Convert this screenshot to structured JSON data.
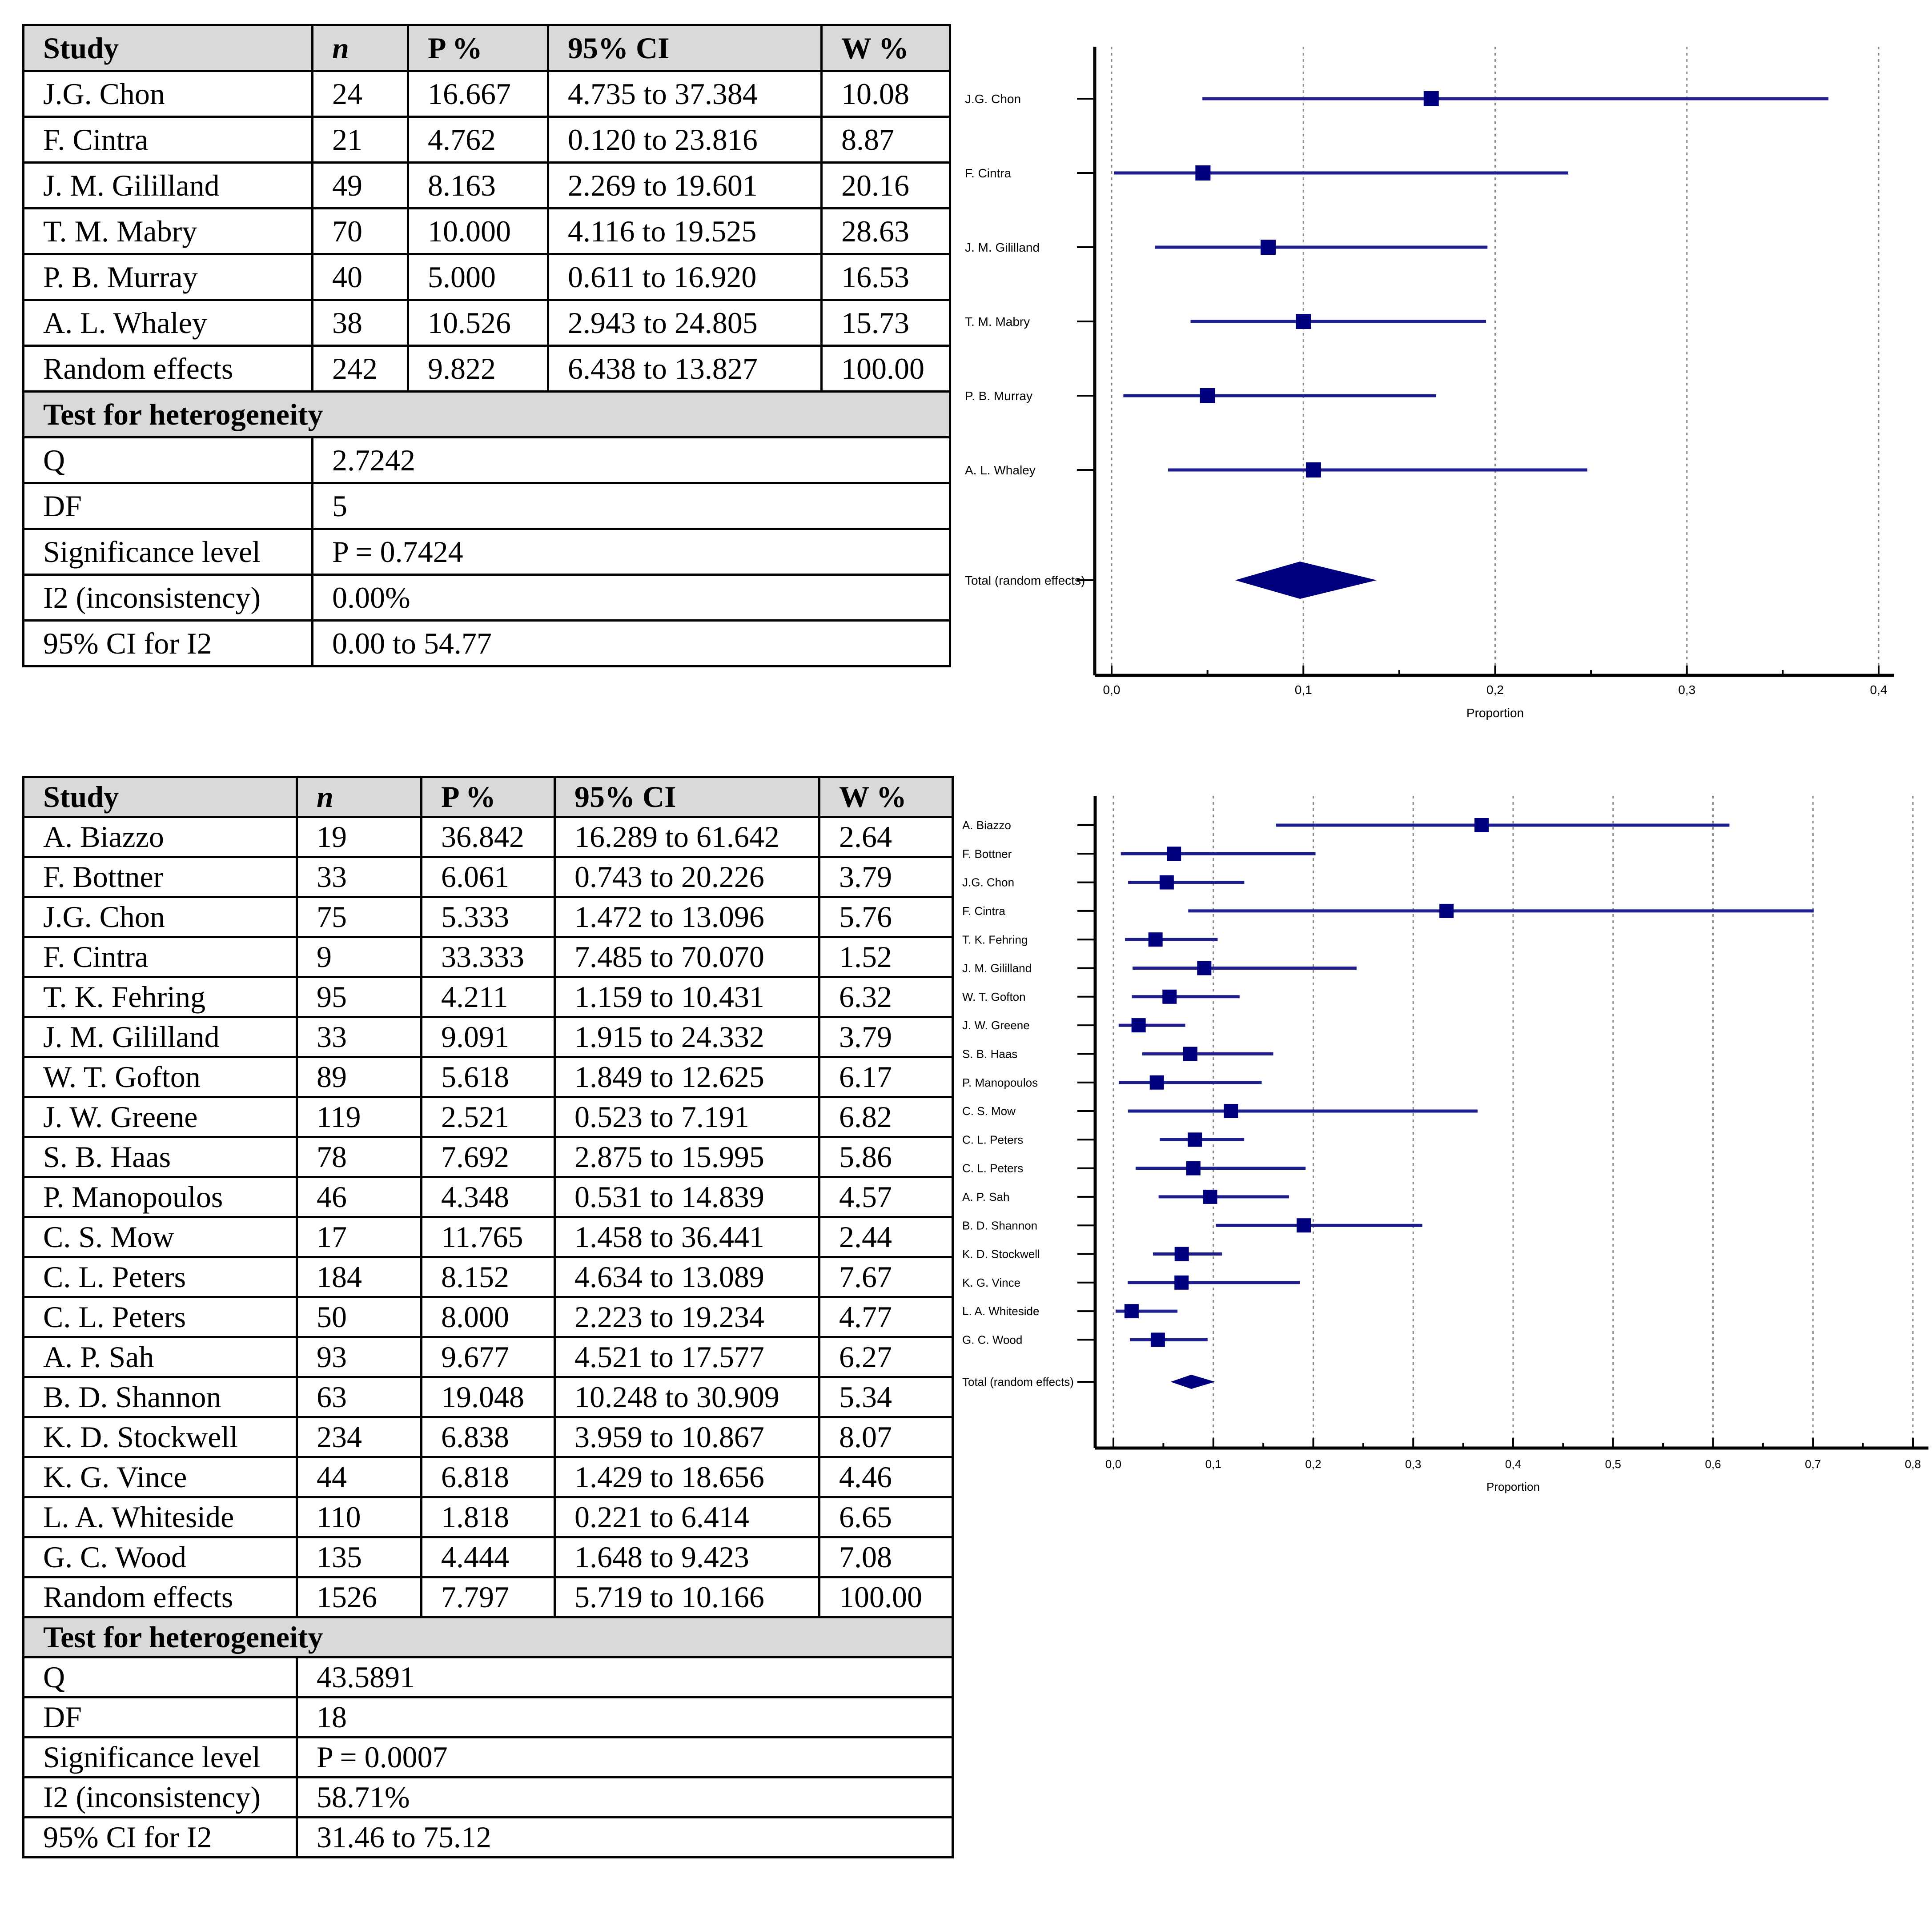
{
  "colors": {
    "marker": "#00007f",
    "ci_line": "#1f1f8f",
    "header_bg": "#d9d9d9",
    "grid": "#888888"
  },
  "table1": {
    "headers": [
      "Study",
      "n",
      "P %",
      "95% CI",
      "W %"
    ],
    "rows": [
      [
        "J.G. Chon",
        "24",
        "16.667",
        "4.735 to 37.384",
        "10.08"
      ],
      [
        "F. Cintra",
        "21",
        "4.762",
        "0.120 to 23.816",
        "8.87"
      ],
      [
        "J. M. Gililland",
        "49",
        "8.163",
        "2.269 to 19.601",
        "20.16"
      ],
      [
        "T. M. Mabry",
        "70",
        "10.000",
        "4.116 to 19.525",
        "28.63"
      ],
      [
        "P. B. Murray",
        "40",
        "5.000",
        "0.611 to 16.920",
        "16.53"
      ],
      [
        "A. L. Whaley",
        "38",
        "10.526",
        "2.943 to 24.805",
        "15.73"
      ],
      [
        "Random effects",
        "242",
        "9.822",
        "6.438 to 13.827",
        "100.00"
      ]
    ],
    "heterogeneity_title": "Test for heterogeneity",
    "heterogeneity": [
      [
        "Q",
        "2.7242"
      ],
      [
        "DF",
        "5"
      ],
      [
        "Significance level",
        "P = 0.7424"
      ],
      [
        "I2 (inconsistency)",
        "0.00%"
      ],
      [
        "95% CI for I2",
        "0.00 to 54.77"
      ]
    ]
  },
  "table2": {
    "headers": [
      "Study",
      "n",
      "P %",
      "95% CI",
      "W %"
    ],
    "rows": [
      [
        "A. Biazzo",
        "19",
        "36.842",
        "16.289 to 61.642",
        "2.64"
      ],
      [
        "F. Bottner",
        "33",
        "6.061",
        "0.743 to 20.226",
        "3.79"
      ],
      [
        "J.G. Chon",
        "75",
        "5.333",
        "1.472 to 13.096",
        "5.76"
      ],
      [
        "F. Cintra",
        "9",
        "33.333",
        "7.485 to 70.070",
        "1.52"
      ],
      [
        "T. K. Fehring",
        "95",
        "4.211",
        "1.159 to 10.431",
        "6.32"
      ],
      [
        "J. M. Gililland",
        "33",
        "9.091",
        "1.915 to 24.332",
        "3.79"
      ],
      [
        "W. T. Gofton",
        "89",
        "5.618",
        "1.849 to 12.625",
        "6.17"
      ],
      [
        "J. W. Greene",
        "119",
        "2.521",
        "0.523 to 7.191",
        "6.82"
      ],
      [
        "S. B. Haas",
        "78",
        "7.692",
        "2.875 to 15.995",
        "5.86"
      ],
      [
        "P. Manopoulos",
        "46",
        "4.348",
        "0.531 to 14.839",
        "4.57"
      ],
      [
        "C. S. Mow",
        "17",
        "11.765",
        "1.458 to 36.441",
        "2.44"
      ],
      [
        "C. L. Peters",
        "184",
        "8.152",
        "4.634 to 13.089",
        "7.67"
      ],
      [
        "C. L. Peters",
        "50",
        "8.000",
        "2.223 to 19.234",
        "4.77"
      ],
      [
        "A. P. Sah",
        "93",
        "9.677",
        "4.521 to 17.577",
        "6.27"
      ],
      [
        "B. D. Shannon",
        "63",
        "19.048",
        "10.248 to 30.909",
        "5.34"
      ],
      [
        "K. D. Stockwell",
        "234",
        "6.838",
        "3.959 to 10.867",
        "8.07"
      ],
      [
        "K. G. Vince",
        "44",
        "6.818",
        "1.429 to 18.656",
        "4.46"
      ],
      [
        "L. A. Whiteside",
        "110",
        "1.818",
        "0.221 to 6.414",
        "6.65"
      ],
      [
        "G. C. Wood",
        "135",
        "4.444",
        "1.648 to 9.423",
        "7.08"
      ],
      [
        "Random effects",
        "1526",
        "7.797",
        "5.719 to 10.166",
        "100.00"
      ]
    ],
    "heterogeneity_title": "Test for heterogeneity",
    "heterogeneity": [
      [
        "Q",
        "43.5891"
      ],
      [
        "DF",
        "18"
      ],
      [
        "Significance level",
        "P = 0.0007"
      ],
      [
        "I2 (inconsistency)",
        "58.71%"
      ],
      [
        "95% CI for I2",
        "31.46 to 75.12"
      ]
    ]
  },
  "chart_data": [
    {
      "type": "forest",
      "xlabel": "Proportion",
      "xlim": [
        0,
        0.4
      ],
      "xticks": [
        0,
        0.1,
        0.2,
        0.3,
        0.4
      ],
      "xtick_labels": [
        "0,0",
        "0,1",
        "0,2",
        "0,3",
        "0,4"
      ],
      "studies": [
        {
          "label": "J.G. Chon",
          "p": 0.16667,
          "lo": 0.04735,
          "hi": 0.37384,
          "w": 10.08
        },
        {
          "label": "F. Cintra",
          "p": 0.04762,
          "lo": 0.0012,
          "hi": 0.23816,
          "w": 8.87
        },
        {
          "label": "J. M. Gililland",
          "p": 0.08163,
          "lo": 0.02269,
          "hi": 0.19601,
          "w": 20.16
        },
        {
          "label": "T. M. Mabry",
          "p": 0.1,
          "lo": 0.04116,
          "hi": 0.19525,
          "w": 28.63
        },
        {
          "label": "P. B. Murray",
          "p": 0.05,
          "lo": 0.00611,
          "hi": 0.1692,
          "w": 16.53
        },
        {
          "label": "A. L. Whaley",
          "p": 0.10526,
          "lo": 0.02943,
          "hi": 0.24805,
          "w": 15.73
        }
      ],
      "total": {
        "label": "Total (random effects)",
        "p": 0.09822,
        "lo": 0.06438,
        "hi": 0.13827
      }
    },
    {
      "type": "forest",
      "xlabel": "Proportion",
      "xlim": [
        0,
        0.8
      ],
      "xticks": [
        0,
        0.1,
        0.2,
        0.3,
        0.4,
        0.5,
        0.6,
        0.7,
        0.8
      ],
      "xtick_labels": [
        "0,0",
        "0,1",
        "0,2",
        "0,3",
        "0,4",
        "0,5",
        "0,6",
        "0,7",
        "0,8"
      ],
      "studies": [
        {
          "label": "A. Biazzo",
          "p": 0.36842,
          "lo": 0.16289,
          "hi": 0.61642,
          "w": 2.64
        },
        {
          "label": "F. Bottner",
          "p": 0.06061,
          "lo": 0.00743,
          "hi": 0.20226,
          "w": 3.79
        },
        {
          "label": "J.G. Chon",
          "p": 0.05333,
          "lo": 0.01472,
          "hi": 0.13096,
          "w": 5.76
        },
        {
          "label": "F. Cintra",
          "p": 0.33333,
          "lo": 0.07485,
          "hi": 0.7007,
          "w": 1.52
        },
        {
          "label": "T. K. Fehring",
          "p": 0.04211,
          "lo": 0.01159,
          "hi": 0.10431,
          "w": 6.32
        },
        {
          "label": "J. M. Gililland",
          "p": 0.09091,
          "lo": 0.01915,
          "hi": 0.24332,
          "w": 3.79
        },
        {
          "label": "W. T. Gofton",
          "p": 0.05618,
          "lo": 0.01849,
          "hi": 0.12625,
          "w": 6.17
        },
        {
          "label": "J. W. Greene",
          "p": 0.02521,
          "lo": 0.00523,
          "hi": 0.07191,
          "w": 6.82
        },
        {
          "label": "S. B. Haas",
          "p": 0.07692,
          "lo": 0.02875,
          "hi": 0.15995,
          "w": 5.86
        },
        {
          "label": "P. Manopoulos",
          "p": 0.04348,
          "lo": 0.00531,
          "hi": 0.14839,
          "w": 4.57
        },
        {
          "label": "C. S. Mow",
          "p": 0.11765,
          "lo": 0.01458,
          "hi": 0.36441,
          "w": 2.44
        },
        {
          "label": "C. L. Peters",
          "p": 0.08152,
          "lo": 0.04634,
          "hi": 0.13089,
          "w": 7.67
        },
        {
          "label": "C. L. Peters",
          "p": 0.08,
          "lo": 0.02223,
          "hi": 0.19234,
          "w": 4.77
        },
        {
          "label": "A. P. Sah",
          "p": 0.09677,
          "lo": 0.04521,
          "hi": 0.17577,
          "w": 6.27
        },
        {
          "label": "B. D. Shannon",
          "p": 0.19048,
          "lo": 0.10248,
          "hi": 0.30909,
          "w": 5.34
        },
        {
          "label": "K. D. Stockwell",
          "p": 0.06838,
          "lo": 0.03959,
          "hi": 0.10867,
          "w": 8.07
        },
        {
          "label": "K. G. Vince",
          "p": 0.06818,
          "lo": 0.01429,
          "hi": 0.18656,
          "w": 4.46
        },
        {
          "label": "L. A. Whiteside",
          "p": 0.01818,
          "lo": 0.00221,
          "hi": 0.06414,
          "w": 6.65
        },
        {
          "label": "G. C. Wood",
          "p": 0.04444,
          "lo": 0.01648,
          "hi": 0.09423,
          "w": 7.08
        }
      ],
      "total": {
        "label": "Total (random effects)",
        "p": 0.07797,
        "lo": 0.05719,
        "hi": 0.10166
      }
    }
  ]
}
